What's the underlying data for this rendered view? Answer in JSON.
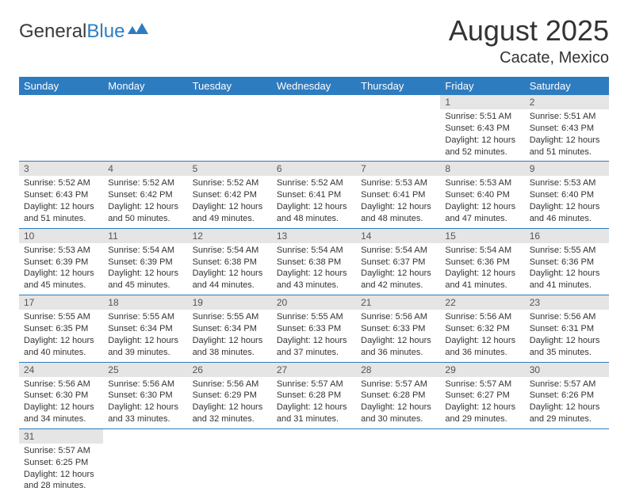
{
  "brand": {
    "part1": "General",
    "part2": "Blue"
  },
  "title": "August 2025",
  "location": "Cacate, Mexico",
  "colors": {
    "header_bg": "#2e7cc0",
    "header_text": "#ffffff",
    "daynum_bg": "#e5e5e5",
    "rule": "#2e7cc0",
    "body_text": "#333333"
  },
  "day_headers": [
    "Sunday",
    "Monday",
    "Tuesday",
    "Wednesday",
    "Thursday",
    "Friday",
    "Saturday"
  ],
  "weeks": [
    [
      null,
      null,
      null,
      null,
      null,
      {
        "n": "1",
        "sr": "Sunrise: 5:51 AM",
        "ss": "Sunset: 6:43 PM",
        "d1": "Daylight: 12 hours",
        "d2": "and 52 minutes."
      },
      {
        "n": "2",
        "sr": "Sunrise: 5:51 AM",
        "ss": "Sunset: 6:43 PM",
        "d1": "Daylight: 12 hours",
        "d2": "and 51 minutes."
      }
    ],
    [
      {
        "n": "3",
        "sr": "Sunrise: 5:52 AM",
        "ss": "Sunset: 6:43 PM",
        "d1": "Daylight: 12 hours",
        "d2": "and 51 minutes."
      },
      {
        "n": "4",
        "sr": "Sunrise: 5:52 AM",
        "ss": "Sunset: 6:42 PM",
        "d1": "Daylight: 12 hours",
        "d2": "and 50 minutes."
      },
      {
        "n": "5",
        "sr": "Sunrise: 5:52 AM",
        "ss": "Sunset: 6:42 PM",
        "d1": "Daylight: 12 hours",
        "d2": "and 49 minutes."
      },
      {
        "n": "6",
        "sr": "Sunrise: 5:52 AM",
        "ss": "Sunset: 6:41 PM",
        "d1": "Daylight: 12 hours",
        "d2": "and 48 minutes."
      },
      {
        "n": "7",
        "sr": "Sunrise: 5:53 AM",
        "ss": "Sunset: 6:41 PM",
        "d1": "Daylight: 12 hours",
        "d2": "and 48 minutes."
      },
      {
        "n": "8",
        "sr": "Sunrise: 5:53 AM",
        "ss": "Sunset: 6:40 PM",
        "d1": "Daylight: 12 hours",
        "d2": "and 47 minutes."
      },
      {
        "n": "9",
        "sr": "Sunrise: 5:53 AM",
        "ss": "Sunset: 6:40 PM",
        "d1": "Daylight: 12 hours",
        "d2": "and 46 minutes."
      }
    ],
    [
      {
        "n": "10",
        "sr": "Sunrise: 5:53 AM",
        "ss": "Sunset: 6:39 PM",
        "d1": "Daylight: 12 hours",
        "d2": "and 45 minutes."
      },
      {
        "n": "11",
        "sr": "Sunrise: 5:54 AM",
        "ss": "Sunset: 6:39 PM",
        "d1": "Daylight: 12 hours",
        "d2": "and 45 minutes."
      },
      {
        "n": "12",
        "sr": "Sunrise: 5:54 AM",
        "ss": "Sunset: 6:38 PM",
        "d1": "Daylight: 12 hours",
        "d2": "and 44 minutes."
      },
      {
        "n": "13",
        "sr": "Sunrise: 5:54 AM",
        "ss": "Sunset: 6:38 PM",
        "d1": "Daylight: 12 hours",
        "d2": "and 43 minutes."
      },
      {
        "n": "14",
        "sr": "Sunrise: 5:54 AM",
        "ss": "Sunset: 6:37 PM",
        "d1": "Daylight: 12 hours",
        "d2": "and 42 minutes."
      },
      {
        "n": "15",
        "sr": "Sunrise: 5:54 AM",
        "ss": "Sunset: 6:36 PM",
        "d1": "Daylight: 12 hours",
        "d2": "and 41 minutes."
      },
      {
        "n": "16",
        "sr": "Sunrise: 5:55 AM",
        "ss": "Sunset: 6:36 PM",
        "d1": "Daylight: 12 hours",
        "d2": "and 41 minutes."
      }
    ],
    [
      {
        "n": "17",
        "sr": "Sunrise: 5:55 AM",
        "ss": "Sunset: 6:35 PM",
        "d1": "Daylight: 12 hours",
        "d2": "and 40 minutes."
      },
      {
        "n": "18",
        "sr": "Sunrise: 5:55 AM",
        "ss": "Sunset: 6:34 PM",
        "d1": "Daylight: 12 hours",
        "d2": "and 39 minutes."
      },
      {
        "n": "19",
        "sr": "Sunrise: 5:55 AM",
        "ss": "Sunset: 6:34 PM",
        "d1": "Daylight: 12 hours",
        "d2": "and 38 minutes."
      },
      {
        "n": "20",
        "sr": "Sunrise: 5:55 AM",
        "ss": "Sunset: 6:33 PM",
        "d1": "Daylight: 12 hours",
        "d2": "and 37 minutes."
      },
      {
        "n": "21",
        "sr": "Sunrise: 5:56 AM",
        "ss": "Sunset: 6:33 PM",
        "d1": "Daylight: 12 hours",
        "d2": "and 36 minutes."
      },
      {
        "n": "22",
        "sr": "Sunrise: 5:56 AM",
        "ss": "Sunset: 6:32 PM",
        "d1": "Daylight: 12 hours",
        "d2": "and 36 minutes."
      },
      {
        "n": "23",
        "sr": "Sunrise: 5:56 AM",
        "ss": "Sunset: 6:31 PM",
        "d1": "Daylight: 12 hours",
        "d2": "and 35 minutes."
      }
    ],
    [
      {
        "n": "24",
        "sr": "Sunrise: 5:56 AM",
        "ss": "Sunset: 6:30 PM",
        "d1": "Daylight: 12 hours",
        "d2": "and 34 minutes."
      },
      {
        "n": "25",
        "sr": "Sunrise: 5:56 AM",
        "ss": "Sunset: 6:30 PM",
        "d1": "Daylight: 12 hours",
        "d2": "and 33 minutes."
      },
      {
        "n": "26",
        "sr": "Sunrise: 5:56 AM",
        "ss": "Sunset: 6:29 PM",
        "d1": "Daylight: 12 hours",
        "d2": "and 32 minutes."
      },
      {
        "n": "27",
        "sr": "Sunrise: 5:57 AM",
        "ss": "Sunset: 6:28 PM",
        "d1": "Daylight: 12 hours",
        "d2": "and 31 minutes."
      },
      {
        "n": "28",
        "sr": "Sunrise: 5:57 AM",
        "ss": "Sunset: 6:28 PM",
        "d1": "Daylight: 12 hours",
        "d2": "and 30 minutes."
      },
      {
        "n": "29",
        "sr": "Sunrise: 5:57 AM",
        "ss": "Sunset: 6:27 PM",
        "d1": "Daylight: 12 hours",
        "d2": "and 29 minutes."
      },
      {
        "n": "30",
        "sr": "Sunrise: 5:57 AM",
        "ss": "Sunset: 6:26 PM",
        "d1": "Daylight: 12 hours",
        "d2": "and 29 minutes."
      }
    ],
    [
      {
        "n": "31",
        "sr": "Sunrise: 5:57 AM",
        "ss": "Sunset: 6:25 PM",
        "d1": "Daylight: 12 hours",
        "d2": "and 28 minutes."
      },
      null,
      null,
      null,
      null,
      null,
      null
    ]
  ]
}
